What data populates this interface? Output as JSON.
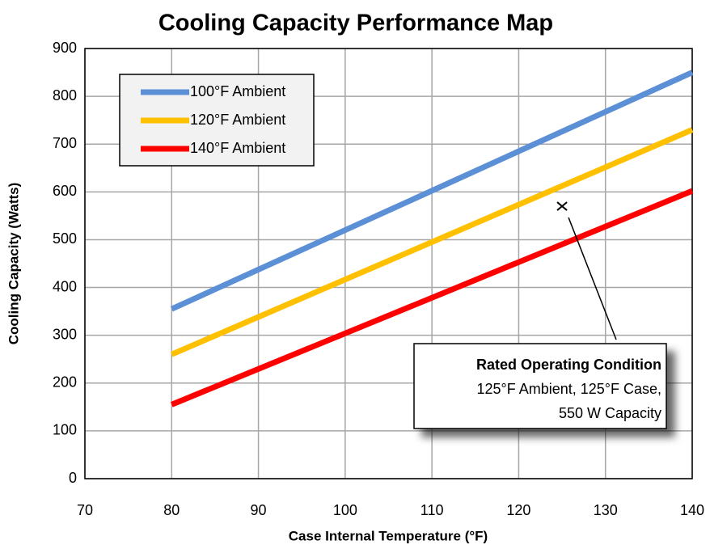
{
  "chart_data": {
    "type": "line",
    "title": "Cooling Capacity Performance Map",
    "xlabel": "Case  Internal Temperature (°F)",
    "ylabel": "Cooling Capacity  (Watts)",
    "x": [
      80,
      140
    ],
    "series": [
      {
        "name": "100°F Ambient",
        "color": "#5b8fd6",
        "values": [
          355,
          850
        ]
      },
      {
        "name": "120°F Ambient",
        "color": "#ffc000",
        "values": [
          260,
          730
        ]
      },
      {
        "name": "140°F Ambient",
        "color": "#ff0000",
        "values": [
          155,
          602
        ]
      }
    ],
    "xlim": [
      70,
      140
    ],
    "xticks": [
      70,
      80,
      90,
      100,
      110,
      120,
      130,
      140
    ],
    "ylim": [
      0,
      900
    ],
    "yticks": [
      0,
      100,
      200,
      300,
      400,
      500,
      600,
      700,
      800,
      900
    ],
    "grid": true,
    "legend": "upper left",
    "annotation": {
      "title": "Rated Operating Condition",
      "lines": [
        "125°F Ambient, 125°F Case,",
        "550 W Capacity"
      ],
      "point": {
        "x": 125,
        "y": 570
      }
    }
  }
}
